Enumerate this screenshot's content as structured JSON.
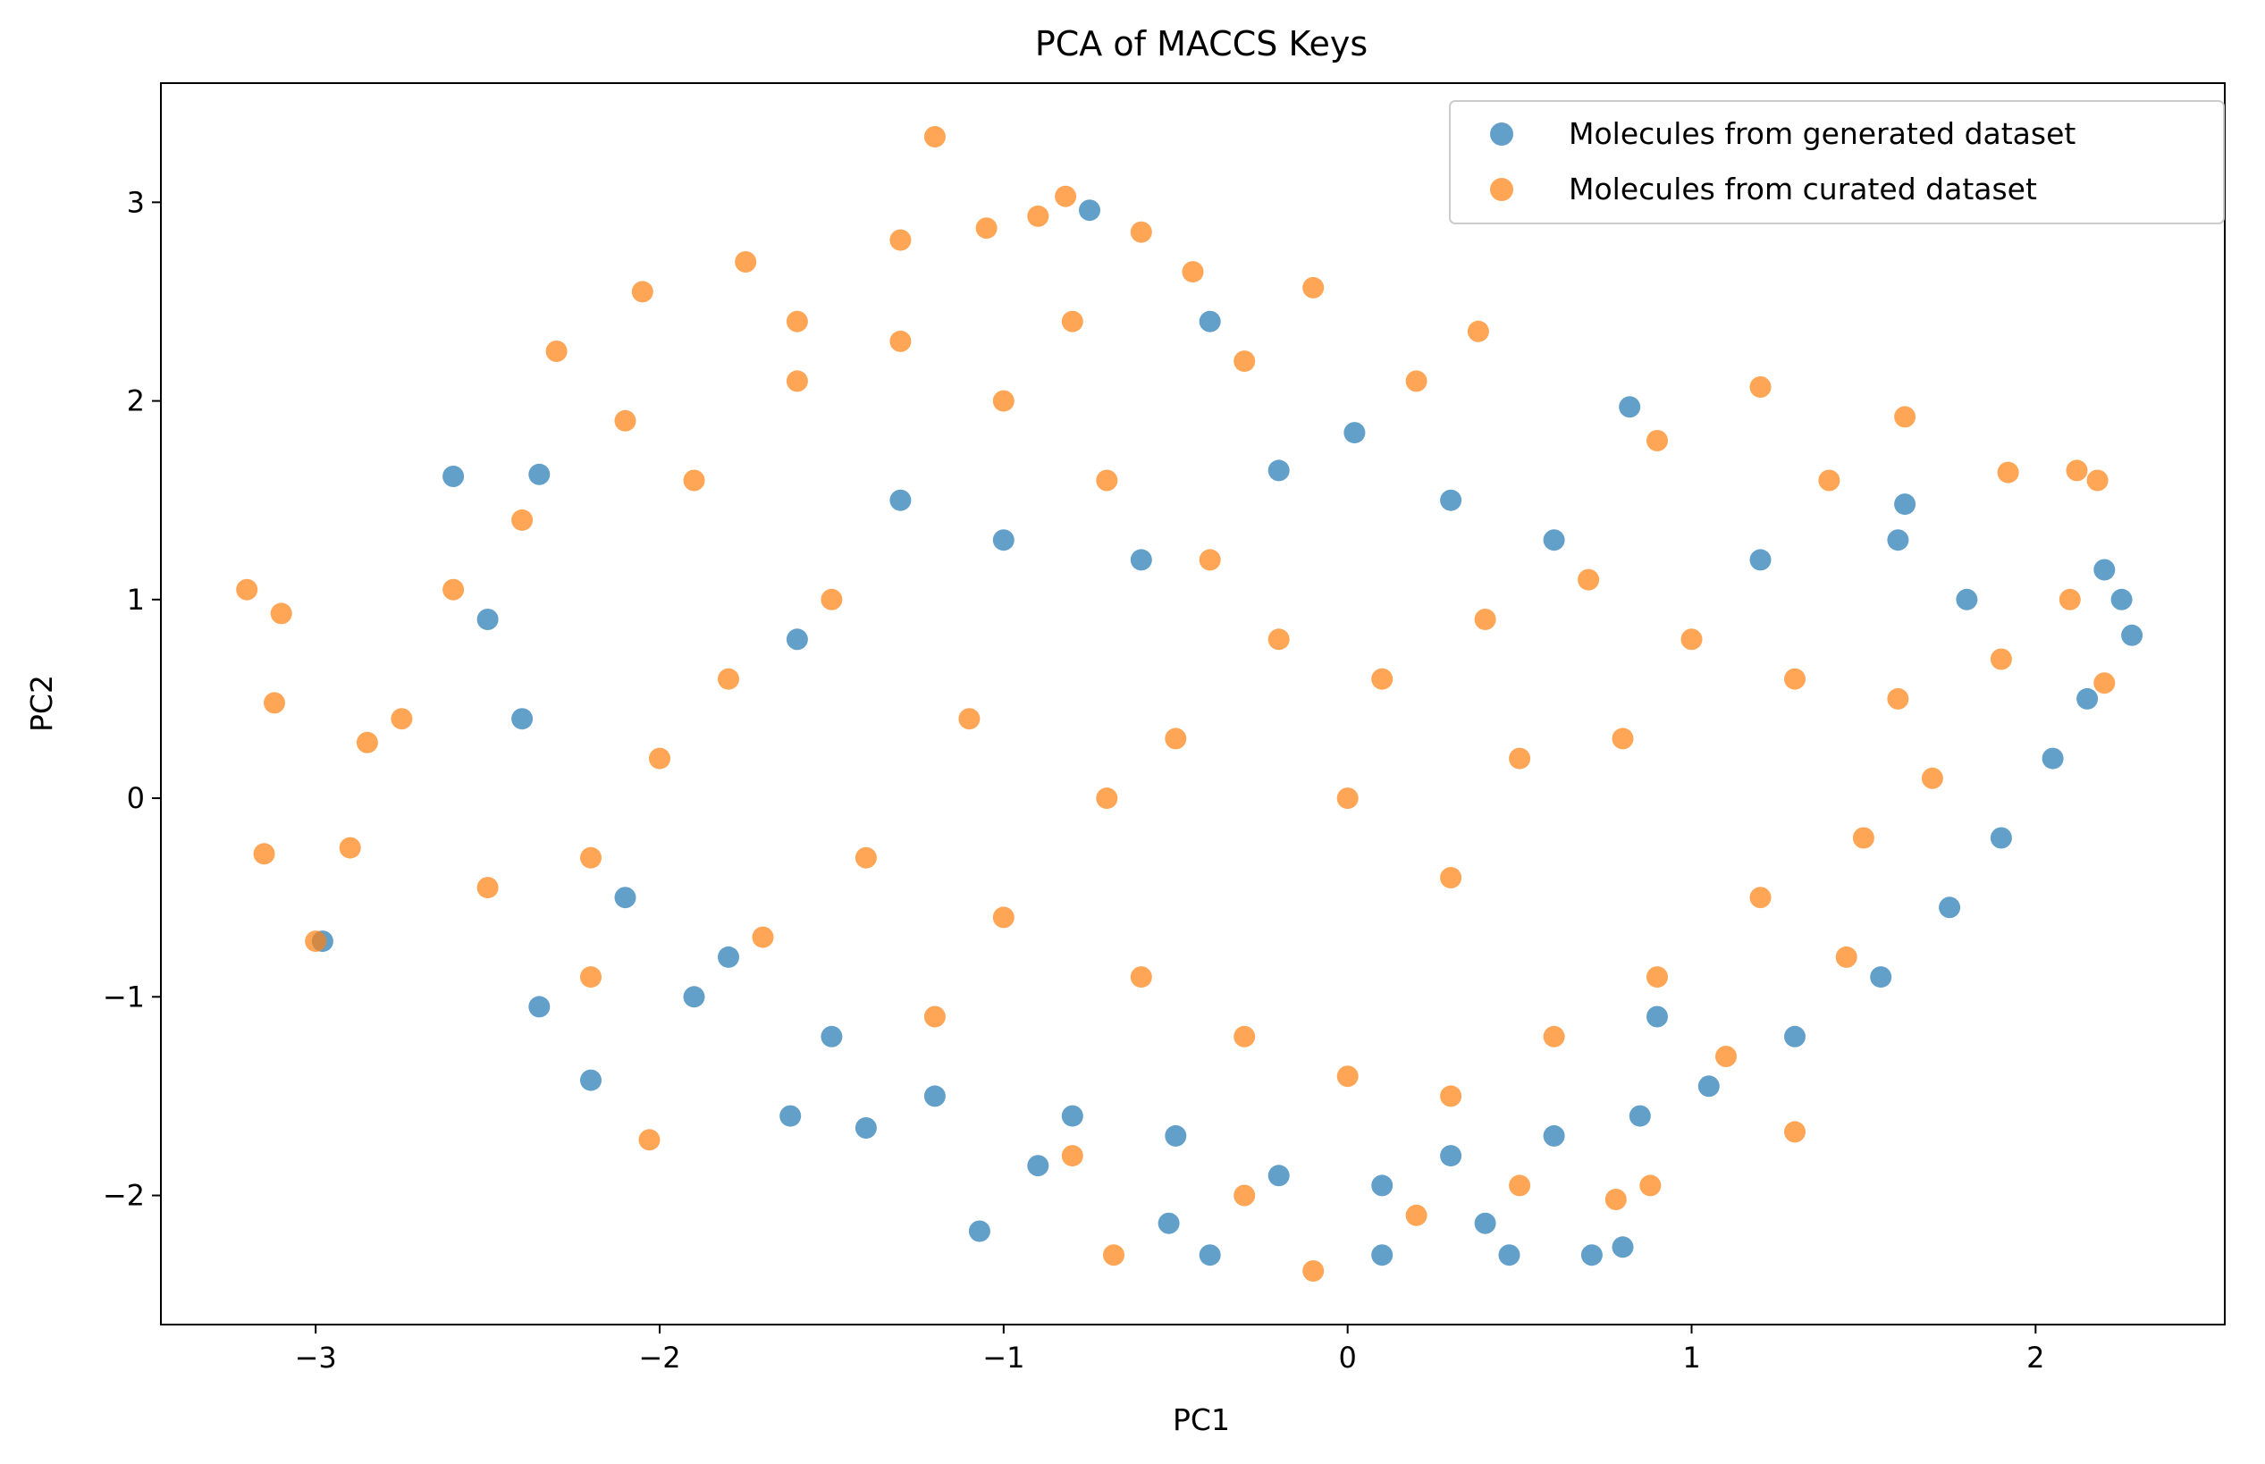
{
  "chart_data": {
    "type": "scatter",
    "title": "PCA of MACCS Keys",
    "xlabel": "PC1",
    "ylabel": "PC2",
    "xlim": [
      -3.45,
      2.55
    ],
    "ylim": [
      -2.65,
      3.6
    ],
    "xticks": [
      -3,
      -2,
      -1,
      0,
      1,
      2
    ],
    "yticks": [
      -2,
      -1,
      0,
      1,
      2,
      3
    ],
    "xtick_labels": [
      "−3",
      "−2",
      "−1",
      "0",
      "1",
      "2"
    ],
    "ytick_labels": [
      "−2",
      "−1",
      "0",
      "1",
      "2",
      "3"
    ],
    "grid": false,
    "legend_position": "top-right",
    "series": [
      {
        "name": "Molecules from generated dataset",
        "color": "#1f77b4",
        "alpha": 0.7,
        "points": [
          [
            -2.6,
            1.62
          ],
          [
            -2.35,
            1.63
          ],
          [
            -0.75,
            2.96
          ],
          [
            -0.4,
            2.4
          ],
          [
            0.82,
            1.97
          ],
          [
            2.28,
            0.82
          ],
          [
            2.25,
            1.0
          ],
          [
            2.2,
            1.15
          ],
          [
            -2.98,
            -0.72
          ],
          [
            -2.35,
            -1.05
          ],
          [
            -2.2,
            -1.42
          ],
          [
            -1.07,
            -2.18
          ],
          [
            -0.52,
            -2.14
          ],
          [
            0.47,
            -2.3
          ],
          [
            0.71,
            -2.3
          ],
          [
            0.8,
            -2.26
          ],
          [
            -0.4,
            -2.3
          ],
          [
            0.1,
            -2.3
          ],
          [
            0.4,
            -2.14
          ],
          [
            -1.62,
            -1.6
          ],
          [
            -1.4,
            -1.66
          ],
          [
            -0.9,
            -1.85
          ],
          [
            0.02,
            1.84
          ],
          [
            1.62,
            1.48
          ],
          [
            -1.9,
            -1.0
          ],
          [
            -1.5,
            -1.2
          ],
          [
            -1.2,
            -1.5
          ],
          [
            -0.8,
            -1.6
          ],
          [
            -0.5,
            -1.7
          ],
          [
            -0.2,
            -1.9
          ],
          [
            0.1,
            -1.95
          ],
          [
            0.3,
            -1.8
          ],
          [
            0.6,
            -1.7
          ],
          [
            0.85,
            -1.6
          ],
          [
            1.05,
            -1.45
          ],
          [
            1.3,
            -1.2
          ],
          [
            1.55,
            -0.9
          ],
          [
            1.75,
            -0.55
          ],
          [
            1.9,
            -0.2
          ],
          [
            2.05,
            0.2
          ],
          [
            2.15,
            0.5
          ],
          [
            -2.1,
            -0.5
          ],
          [
            -1.8,
            -0.8
          ],
          [
            -2.4,
            0.4
          ],
          [
            -2.5,
            0.9
          ],
          [
            -1.6,
            0.8
          ],
          [
            -1.3,
            1.5
          ],
          [
            -1.0,
            1.3
          ],
          [
            -0.6,
            1.2
          ],
          [
            -0.2,
            1.65
          ],
          [
            0.3,
            1.5
          ],
          [
            0.6,
            1.3
          ],
          [
            1.2,
            1.2
          ],
          [
            1.6,
            1.3
          ],
          [
            1.8,
            1.0
          ],
          [
            0.9,
            -1.1
          ]
        ]
      },
      {
        "name": "Molecules from curated dataset",
        "color": "#ff7f0e",
        "alpha": 0.7,
        "points": [
          [
            -1.2,
            3.33
          ],
          [
            -0.82,
            3.03
          ],
          [
            -1.3,
            2.81
          ],
          [
            -3.2,
            1.05
          ],
          [
            -3.1,
            0.93
          ],
          [
            -3.12,
            0.48
          ],
          [
            -2.85,
            0.28
          ],
          [
            -3.15,
            -0.28
          ],
          [
            -3.0,
            -0.72
          ],
          [
            -2.03,
            -1.72
          ],
          [
            -0.68,
            -2.3
          ],
          [
            -0.1,
            -2.38
          ],
          [
            0.78,
            -2.02
          ],
          [
            0.88,
            -1.95
          ],
          [
            1.3,
            -1.68
          ],
          [
            1.92,
            1.64
          ],
          [
            2.18,
            1.6
          ],
          [
            2.12,
            1.65
          ],
          [
            2.2,
            0.58
          ],
          [
            1.62,
            1.92
          ],
          [
            1.2,
            2.07
          ],
          [
            -2.05,
            2.55
          ],
          [
            -1.75,
            2.7
          ],
          [
            -0.45,
            2.65
          ],
          [
            0.38,
            2.35
          ],
          [
            -0.1,
            2.57
          ],
          [
            -0.6,
            2.85
          ],
          [
            -0.9,
            2.93
          ],
          [
            -1.05,
            2.87
          ],
          [
            -2.3,
            2.25
          ],
          [
            -2.6,
            1.05
          ],
          [
            -2.75,
            0.4
          ],
          [
            -2.9,
            -0.25
          ],
          [
            -2.5,
            -0.45
          ],
          [
            -2.2,
            -0.3
          ],
          [
            -2.0,
            0.2
          ],
          [
            -1.8,
            0.6
          ],
          [
            -1.5,
            1.0
          ],
          [
            -1.9,
            1.6
          ],
          [
            -1.6,
            2.1
          ],
          [
            -1.3,
            2.3
          ],
          [
            -1.0,
            2.0
          ],
          [
            -0.7,
            1.6
          ],
          [
            -0.4,
            1.2
          ],
          [
            -0.2,
            0.8
          ],
          [
            0.1,
            0.6
          ],
          [
            0.4,
            0.9
          ],
          [
            0.7,
            1.1
          ],
          [
            1.0,
            0.8
          ],
          [
            1.3,
            0.6
          ],
          [
            1.6,
            0.5
          ],
          [
            1.9,
            0.7
          ],
          [
            2.1,
            1.0
          ],
          [
            -1.4,
            -0.3
          ],
          [
            -1.0,
            -0.6
          ],
          [
            -0.6,
            -0.9
          ],
          [
            -0.3,
            -1.2
          ],
          [
            0.0,
            -1.4
          ],
          [
            0.3,
            -1.5
          ],
          [
            0.6,
            -1.2
          ],
          [
            0.9,
            -0.9
          ],
          [
            1.2,
            -0.5
          ],
          [
            1.5,
            -0.2
          ],
          [
            1.7,
            0.1
          ],
          [
            -1.7,
            -0.7
          ],
          [
            -2.2,
            -0.9
          ],
          [
            -1.2,
            -1.1
          ],
          [
            -0.8,
            -1.8
          ],
          [
            -0.3,
            -2.0
          ],
          [
            0.2,
            -2.1
          ],
          [
            0.5,
            -1.95
          ],
          [
            1.1,
            -1.3
          ],
          [
            1.45,
            -0.8
          ],
          [
            -0.5,
            0.3
          ],
          [
            0.0,
            0.0
          ],
          [
            0.5,
            0.2
          ],
          [
            -1.1,
            0.4
          ],
          [
            -0.7,
            0.0
          ],
          [
            0.3,
            -0.4
          ],
          [
            0.8,
            0.3
          ],
          [
            1.4,
            1.6
          ],
          [
            0.9,
            1.8
          ],
          [
            0.2,
            2.1
          ],
          [
            -0.3,
            2.2
          ],
          [
            -0.8,
            2.4
          ],
          [
            -1.6,
            2.4
          ],
          [
            -2.1,
            1.9
          ],
          [
            -2.4,
            1.4
          ]
        ]
      }
    ]
  }
}
